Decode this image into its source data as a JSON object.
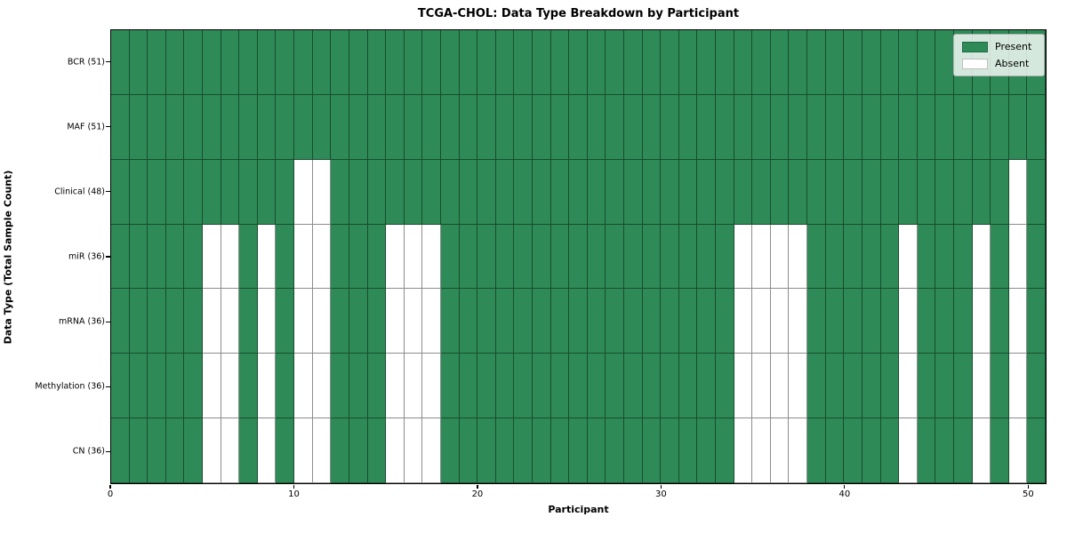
{
  "chart_data": {
    "type": "heatmap",
    "title": "TCGA-CHOL: Data Type Breakdown by Participant",
    "xlabel": "Participant",
    "ylabel": "Data Type (Total Sample Count)",
    "n_participants": 51,
    "x_range": [
      0,
      51
    ],
    "x_ticks": [
      0,
      10,
      20,
      30,
      40,
      50
    ],
    "grid": true,
    "rows": [
      {
        "label": "BCR (51)",
        "total_samples": 51,
        "absent_participants": []
      },
      {
        "label": "MAF (51)",
        "total_samples": 51,
        "absent_participants": []
      },
      {
        "label": "Clinical (48)",
        "total_samples": 48,
        "absent_participants": [
          10,
          11,
          49
        ]
      },
      {
        "label": "miR (36)",
        "total_samples": 36,
        "absent_participants": [
          5,
          6,
          8,
          10,
          11,
          15,
          16,
          17,
          34,
          35,
          36,
          37,
          43,
          47,
          49
        ]
      },
      {
        "label": "mRNA (36)",
        "total_samples": 36,
        "absent_participants": [
          5,
          6,
          8,
          10,
          11,
          15,
          16,
          17,
          34,
          35,
          36,
          37,
          43,
          47,
          49
        ]
      },
      {
        "label": "Methylation (36)",
        "total_samples": 36,
        "absent_participants": [
          5,
          6,
          8,
          10,
          11,
          15,
          16,
          17,
          34,
          35,
          36,
          37,
          43,
          47,
          49
        ]
      },
      {
        "label": "CN (36)",
        "total_samples": 36,
        "absent_participants": [
          5,
          6,
          8,
          10,
          11,
          15,
          16,
          17,
          34,
          35,
          36,
          37,
          43,
          47,
          49
        ]
      }
    ],
    "legend": {
      "position": "top-right",
      "entries": [
        {
          "label": "Present",
          "color": "#2e8b57"
        },
        {
          "label": "Absent",
          "color": "#ffffff"
        }
      ]
    },
    "colors": {
      "present": "#2e8b57",
      "absent": "#ffffff",
      "cell_edge": "rgba(0,0,0,0.45)",
      "spine": "#000000"
    }
  }
}
